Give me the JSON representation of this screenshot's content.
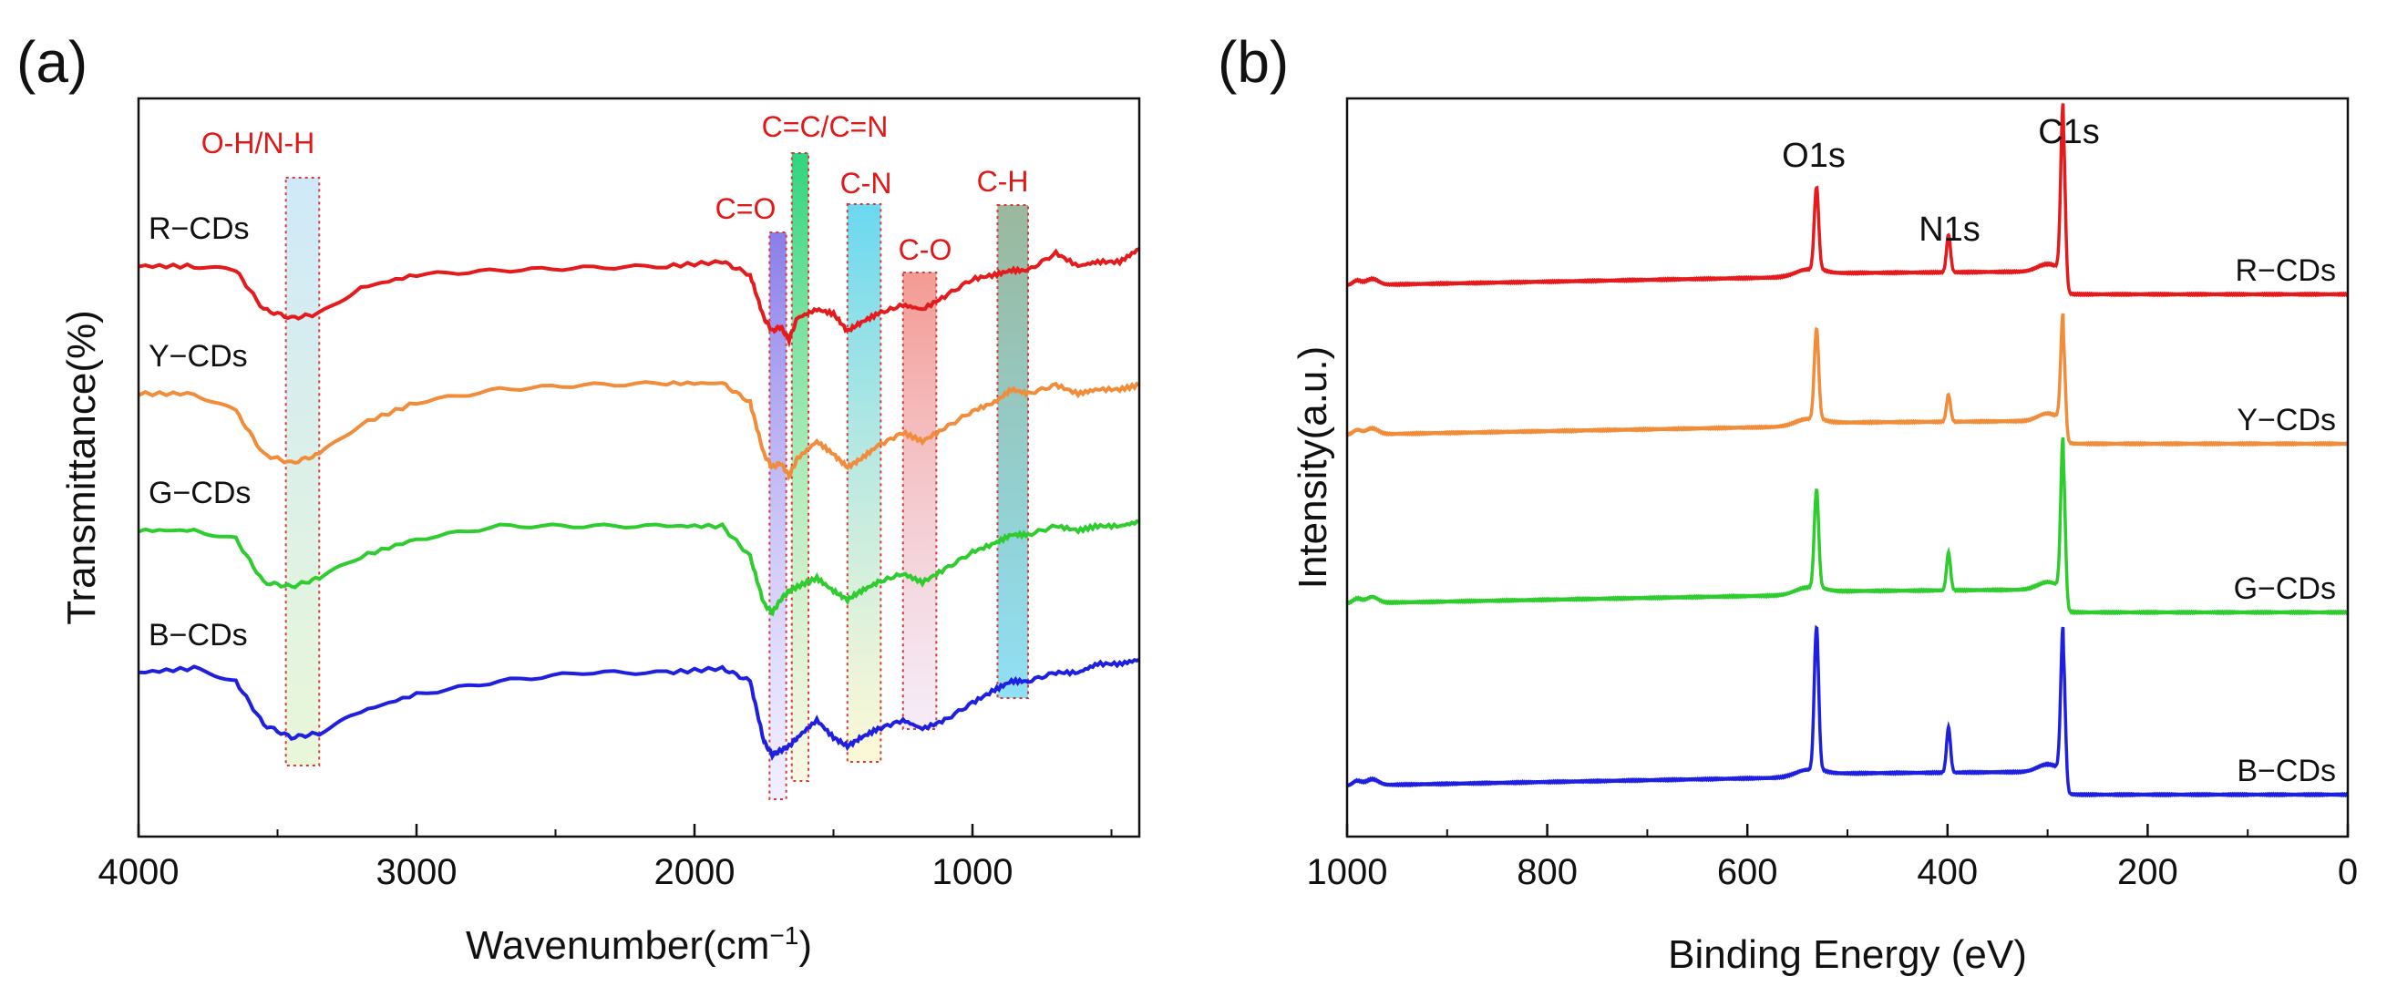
{
  "chart_data": [
    {
      "panel": "(a)",
      "type": "line",
      "xlabel_main": "Wavenumber(cm",
      "xlabel_sup": "−1",
      "xlabel_tail": ")",
      "ylabel": "Transmittance(%)",
      "xlim": [
        4000,
        400
      ],
      "xticks": [
        4000,
        3000,
        2000,
        1000
      ],
      "series": [
        {
          "name": "R−CDs",
          "color": "#e41a1c",
          "offset": 0.0,
          "x": [
            4000,
            3800,
            3650,
            3550,
            3450,
            3350,
            3200,
            3000,
            2700,
            2400,
            2100,
            1900,
            1800,
            1750,
            1720,
            1690,
            1660,
            1630,
            1560,
            1500,
            1450,
            1400,
            1340,
            1250,
            1180,
            1100,
            1000,
            920,
            860,
            800,
            700,
            620,
            550,
            470,
            400
          ],
          "y": [
            0.0,
            0.0,
            -0.05,
            -0.5,
            -0.6,
            -0.55,
            -0.25,
            -0.1,
            -0.05,
            -0.02,
            0.0,
            0.05,
            -0.1,
            -0.6,
            -0.75,
            -0.7,
            -0.85,
            -0.6,
            -0.5,
            -0.55,
            -0.75,
            -0.65,
            -0.55,
            -0.45,
            -0.5,
            -0.35,
            -0.15,
            -0.1,
            -0.05,
            -0.05,
            0.15,
            0.0,
            0.05,
            0.05,
            0.2
          ]
        },
        {
          "name": "Y−CDs",
          "color": "#f08c3a",
          "offset": 1.5,
          "x": [
            4000,
            3800,
            3650,
            3550,
            3450,
            3350,
            3200,
            3000,
            2700,
            2400,
            2100,
            1900,
            1800,
            1750,
            1720,
            1690,
            1660,
            1630,
            1560,
            1500,
            1450,
            1400,
            1340,
            1250,
            1180,
            1100,
            1000,
            920,
            860,
            800,
            700,
            620,
            550,
            470,
            400
          ],
          "y": [
            0.0,
            0.0,
            -0.2,
            -0.7,
            -0.8,
            -0.7,
            -0.35,
            -0.1,
            0.05,
            0.1,
            0.12,
            0.12,
            -0.1,
            -0.7,
            -0.85,
            -0.8,
            -0.95,
            -0.75,
            -0.55,
            -0.7,
            -0.85,
            -0.75,
            -0.6,
            -0.45,
            -0.55,
            -0.4,
            -0.2,
            -0.1,
            0.05,
            0.0,
            0.1,
            0.0,
            0.05,
            0.05,
            0.1
          ]
        },
        {
          "name": "G−CDs",
          "color": "#2ecc2e",
          "offset": 3.0,
          "x": [
            4000,
            3800,
            3650,
            3550,
            3450,
            3350,
            3200,
            3000,
            2700,
            2400,
            2100,
            1900,
            1800,
            1750,
            1720,
            1690,
            1660,
            1630,
            1560,
            1500,
            1450,
            1400,
            1340,
            1250,
            1180,
            1100,
            1000,
            920,
            860,
            800,
            700,
            620,
            550,
            470,
            400
          ],
          "y": [
            0.0,
            0.0,
            -0.1,
            -0.6,
            -0.65,
            -0.55,
            -0.3,
            -0.1,
            0.05,
            0.05,
            0.05,
            0.05,
            -0.3,
            -0.85,
            -0.95,
            -0.8,
            -0.7,
            -0.65,
            -0.55,
            -0.7,
            -0.8,
            -0.7,
            -0.6,
            -0.5,
            -0.6,
            -0.45,
            -0.25,
            -0.15,
            -0.05,
            -0.05,
            0.05,
            0.0,
            0.05,
            0.05,
            0.1
          ]
        },
        {
          "name": "B−CDs",
          "color": "#1f1fe0",
          "offset": 4.5,
          "x": [
            4000,
            3800,
            3650,
            3550,
            3450,
            3350,
            3200,
            3000,
            2700,
            2400,
            2100,
            1900,
            1800,
            1750,
            1720,
            1690,
            1660,
            1630,
            1560,
            1500,
            1450,
            1400,
            1340,
            1250,
            1180,
            1100,
            1000,
            920,
            860,
            800,
            700,
            620,
            550,
            470,
            400
          ],
          "y": [
            0.0,
            0.05,
            -0.1,
            -0.6,
            -0.75,
            -0.7,
            -0.45,
            -0.25,
            -0.1,
            0.0,
            0.0,
            0.05,
            -0.1,
            -0.8,
            -0.95,
            -0.9,
            -0.85,
            -0.75,
            -0.55,
            -0.75,
            -0.85,
            -0.75,
            -0.65,
            -0.55,
            -0.65,
            -0.55,
            -0.35,
            -0.2,
            -0.1,
            -0.1,
            0.0,
            0.0,
            0.1,
            0.1,
            0.15
          ]
        }
      ],
      "bands": [
        {
          "label": "O-H/N-H",
          "x_from": 3470,
          "x_to": 3350,
          "top": "r",
          "bottom": "b",
          "fill": "#cde8f6"
        },
        {
          "label": "C=O",
          "x_from": 1730,
          "x_to": 1670,
          "top": "c_o",
          "bottom": "b2",
          "fill": "#8a7ae8"
        },
        {
          "label": "C=C/C=N",
          "x_from": 1650,
          "x_to": 1590,
          "top": "ccn",
          "bottom": "b2",
          "fill": "#3fd98a"
        },
        {
          "label": "C-N",
          "x_from": 1450,
          "x_to": 1330,
          "top": "cn",
          "bottom": "b",
          "fill": "#7fdff2"
        },
        {
          "label": "C-O",
          "x_from": 1250,
          "x_to": 1130,
          "top": "co",
          "bottom": "b",
          "fill": "#f7a7a0"
        },
        {
          "label": "C-H",
          "x_from": 910,
          "x_to": 800,
          "top": "ch",
          "bottom": "g",
          "fill": "#8fd5c8"
        }
      ]
    },
    {
      "panel": "(b)",
      "type": "line",
      "xlabel": "Binding Energy (eV)",
      "ylabel": "Intensity(a.u.)",
      "xlim": [
        1000,
        0
      ],
      "xticks": [
        1000,
        800,
        600,
        400,
        200,
        0
      ],
      "peak_labels": [
        {
          "label": "O1s",
          "x": 531
        },
        {
          "label": "N1s",
          "x": 399
        },
        {
          "label": "C1s",
          "x": 284
        }
      ],
      "series": [
        {
          "name": "R−CDs",
          "color": "#e41a1c",
          "offset": 0.0,
          "o1s": 0.55,
          "n1s": 0.25,
          "c1s": 1.1
        },
        {
          "name": "Y−CDs",
          "color": "#f08c3a",
          "offset": 1.0,
          "o1s": 0.6,
          "n1s": 0.18,
          "c1s": 0.7
        },
        {
          "name": "G−CDs",
          "color": "#2ecc2e",
          "offset": 2.15,
          "o1s": 0.65,
          "n1s": 0.25,
          "c1s": 1.0
        },
        {
          "name": "B−CDs",
          "color": "#1f1fe0",
          "offset": 3.35,
          "o1s": 0.95,
          "n1s": 0.3,
          "c1s": 0.95
        }
      ]
    }
  ]
}
